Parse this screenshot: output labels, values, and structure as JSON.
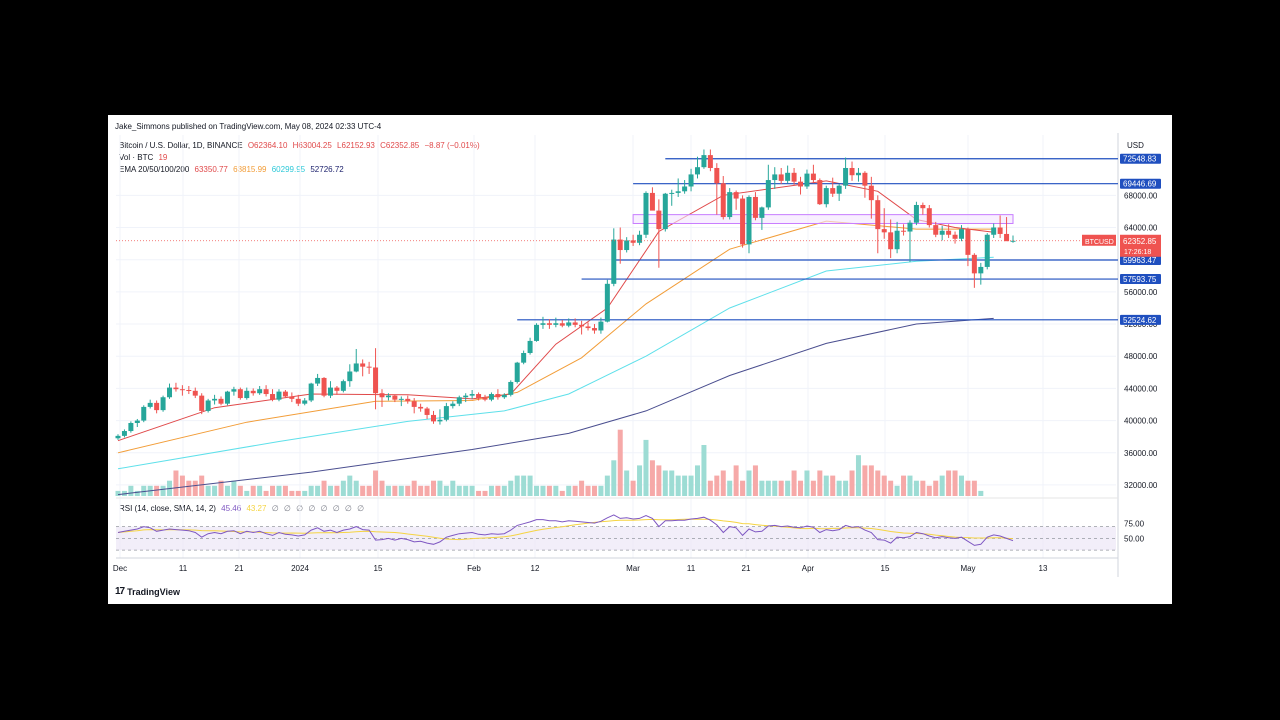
{
  "published_by": "Jake_Simmons published on TradingView.com, May 08, 2024 02:33 UTC-4",
  "legend": {
    "symbol": "Bitcoin / U.S. Dollar, 1D, BINANCE",
    "open": "O62364.10",
    "high": "H63004.25",
    "low": "L62152.93",
    "close": "C62352.85",
    "change": "−8.87 (−0.01%)",
    "vol_label": "Vol · BTC",
    "vol_value": "19",
    "ema_label": "EMA 20/50/100/200",
    "ema20": "63350.77",
    "ema50": "63815.99",
    "ema100": "60299.95",
    "ema200": "52726.72"
  },
  "currency": "USD",
  "brand": "TradingView",
  "brand_logo": "17",
  "rsi_legend": {
    "label": "RSI (14, close, SMA, 14, 2)",
    "rsi": "45.46",
    "sma": "43.27",
    "icons": [
      "∅",
      "∅",
      "∅",
      "∅",
      "∅",
      "∅",
      "∅",
      "∅"
    ]
  },
  "price_tag": {
    "symbol": "BTCUSD",
    "price": "62352.85",
    "countdown": "17:26:18"
  },
  "colors": {
    "up": "#26a69a",
    "down": "#ef5350",
    "ema20": "#e0494a",
    "ema50": "#f29d38",
    "ema100": "#5ee0ea",
    "ema200": "#4a4e8f",
    "hline": "#1f4fbf",
    "zone": "#c77dff"
  },
  "chart_data": {
    "type": "candlestick",
    "y_axis_ticks": [
      "68000.00",
      "64000.00",
      "60000.00",
      "56000.00",
      "52000.00",
      "48000.00",
      "44000.00",
      "40000.00",
      "36000.00",
      "32000.00"
    ],
    "ylim": [
      30500,
      75500
    ],
    "x_axis_ticks": [
      "Dec",
      "11",
      "21",
      "2024",
      "15",
      "Feb",
      "12",
      "Mar",
      "11",
      "21",
      "Apr",
      "15",
      "May",
      "13"
    ],
    "rsi_ticks": [
      "75.00",
      "50.00"
    ],
    "horizontal_levels": [
      "72548.83",
      "69446.69",
      "59963.47",
      "57593.75",
      "52524.62"
    ],
    "resistance_zone": [
      64500,
      65600
    ],
    "candles": [
      [
        37800,
        38300,
        37600,
        38100
      ],
      [
        38100,
        38900,
        37900,
        38700
      ],
      [
        38700,
        39900,
        38500,
        39700
      ],
      [
        39700,
        40200,
        39200,
        40000
      ],
      [
        40000,
        41900,
        39800,
        41700
      ],
      [
        41700,
        42600,
        41500,
        42200
      ],
      [
        42200,
        42500,
        40900,
        41300
      ],
      [
        41300,
        43100,
        41100,
        42900
      ],
      [
        42900,
        44600,
        42700,
        44100
      ],
      [
        44100,
        44700,
        43600,
        43900
      ],
      [
        43900,
        44400,
        43100,
        43800
      ],
      [
        43800,
        44300,
        43300,
        43700
      ],
      [
        43700,
        44100,
        42800,
        43100
      ],
      [
        43100,
        43400,
        40800,
        41200
      ],
      [
        41200,
        42700,
        41000,
        42500
      ],
      [
        42500,
        43200,
        42000,
        42700
      ],
      [
        42700,
        43000,
        41900,
        42100
      ],
      [
        42100,
        43700,
        41900,
        43600
      ],
      [
        43600,
        44200,
        43100,
        43900
      ],
      [
        43900,
        44100,
        42600,
        42800
      ],
      [
        42800,
        44100,
        42600,
        43700
      ],
      [
        43700,
        44000,
        43100,
        43400
      ],
      [
        43400,
        44300,
        43200,
        43900
      ],
      [
        43900,
        44400,
        43000,
        43300
      ],
      [
        43300,
        43900,
        42400,
        42600
      ],
      [
        42600,
        43900,
        42400,
        43600
      ],
      [
        43600,
        43800,
        42800,
        43000
      ],
      [
        43000,
        43500,
        42300,
        42700
      ],
      [
        42700,
        43200,
        41800,
        42100
      ],
      [
        42100,
        42800,
        41900,
        42500
      ],
      [
        42500,
        44700,
        42300,
        44600
      ],
      [
        44600,
        45800,
        44300,
        45300
      ],
      [
        45300,
        45400,
        42900,
        43100
      ],
      [
        43100,
        44900,
        42800,
        44100
      ],
      [
        44100,
        44300,
        43200,
        43700
      ],
      [
        43700,
        45100,
        43500,
        44900
      ],
      [
        44900,
        47000,
        44200,
        46100
      ],
      [
        46100,
        48900,
        46000,
        47100
      ],
      [
        47100,
        47600,
        45500,
        46700
      ],
      [
        46700,
        47300,
        45800,
        46600
      ],
      [
        46600,
        49000,
        41400,
        43400
      ],
      [
        43400,
        43900,
        41700,
        42900
      ],
      [
        42900,
        43400,
        42500,
        43100
      ],
      [
        43100,
        43200,
        42300,
        42600
      ],
      [
        42600,
        43000,
        41800,
        42700
      ],
      [
        42700,
        43100,
        42100,
        42400
      ],
      [
        42400,
        42800,
        40900,
        41700
      ],
      [
        41700,
        42100,
        41100,
        41500
      ],
      [
        41500,
        41700,
        40200,
        40700
      ],
      [
        40700,
        41200,
        39600,
        39900
      ],
      [
        39900,
        41400,
        39500,
        40100
      ],
      [
        40100,
        42200,
        39900,
        41800
      ],
      [
        41800,
        42400,
        41500,
        42100
      ],
      [
        42100,
        43100,
        41800,
        42900
      ],
      [
        42900,
        43400,
        42300,
        43100
      ],
      [
        43100,
        43800,
        42700,
        43300
      ],
      [
        43300,
        43500,
        42500,
        42800
      ],
      [
        42800,
        43200,
        42400,
        42600
      ],
      [
        42600,
        43500,
        42400,
        43300
      ],
      [
        43300,
        43900,
        42600,
        42900
      ],
      [
        42900,
        43400,
        42700,
        43200
      ],
      [
        43200,
        45000,
        43000,
        44800
      ],
      [
        44800,
        47300,
        44600,
        47200
      ],
      [
        47200,
        48700,
        47000,
        48400
      ],
      [
        48400,
        50300,
        48200,
        49900
      ],
      [
        49900,
        52100,
        49800,
        51900
      ],
      [
        51900,
        52900,
        51400,
        52100
      ],
      [
        52100,
        52600,
        51400,
        51900
      ],
      [
        51900,
        52800,
        51600,
        52100
      ],
      [
        52100,
        52500,
        51600,
        51800
      ],
      [
        51800,
        52700,
        51600,
        52200
      ],
      [
        52200,
        52700,
        51600,
        51900
      ],
      [
        51900,
        52400,
        50700,
        51700
      ],
      [
        51700,
        52200,
        51200,
        51500
      ],
      [
        51500,
        52000,
        50800,
        51200
      ],
      [
        51200,
        52800,
        50800,
        52300
      ],
      [
        52300,
        57500,
        52200,
        57000
      ],
      [
        57000,
        63900,
        56700,
        62500
      ],
      [
        62500,
        64000,
        59500,
        61200
      ],
      [
        61200,
        62800,
        60900,
        62400
      ],
      [
        62400,
        63100,
        61700,
        62100
      ],
      [
        62100,
        63600,
        61800,
        63100
      ],
      [
        63100,
        68500,
        62700,
        68300
      ],
      [
        68300,
        69000,
        66300,
        66100
      ],
      [
        66100,
        67500,
        59000,
        63800
      ],
      [
        63800,
        68300,
        63500,
        68200
      ],
      [
        68200,
        68700,
        66700,
        68300
      ],
      [
        68300,
        70100,
        67800,
        68500
      ],
      [
        68500,
        69900,
        68200,
        69100
      ],
      [
        69100,
        71300,
        68500,
        70600
      ],
      [
        70600,
        72800,
        70100,
        71500
      ],
      [
        71500,
        73700,
        71300,
        73000
      ],
      [
        73000,
        73700,
        71000,
        71400
      ],
      [
        71400,
        72000,
        65600,
        69500
      ],
      [
        69500,
        70400,
        65000,
        65300
      ],
      [
        65300,
        68900,
        65000,
        68400
      ],
      [
        68400,
        68600,
        66200,
        67600
      ],
      [
        67600,
        68000,
        61500,
        61900
      ],
      [
        61900,
        68000,
        60800,
        67800
      ],
      [
        67800,
        68400,
        64900,
        65200
      ],
      [
        65200,
        66600,
        63700,
        66500
      ],
      [
        66500,
        71800,
        66200,
        69900
      ],
      [
        69900,
        71500,
        68800,
        70600
      ],
      [
        70600,
        71400,
        69400,
        69800
      ],
      [
        69800,
        71700,
        69500,
        70800
      ],
      [
        70800,
        71400,
        69300,
        69700
      ],
      [
        69700,
        70300,
        68100,
        69100
      ],
      [
        69100,
        71200,
        68800,
        70700
      ],
      [
        70700,
        71800,
        69500,
        69900
      ],
      [
        69900,
        70100,
        66800,
        66900
      ],
      [
        66900,
        69200,
        66500,
        68900
      ],
      [
        68900,
        70200,
        67800,
        68200
      ],
      [
        68200,
        69400,
        67300,
        69200
      ],
      [
        69200,
        72700,
        68800,
        71400
      ],
      [
        71400,
        72200,
        69800,
        70500
      ],
      [
        70500,
        71400,
        69700,
        70800
      ],
      [
        70800,
        71000,
        67700,
        69200
      ],
      [
        69200,
        70300,
        65100,
        67400
      ],
      [
        67400,
        68000,
        60800,
        63800
      ],
      [
        63800,
        66400,
        62600,
        63400
      ],
      [
        63400,
        65000,
        60200,
        61300
      ],
      [
        61300,
        64700,
        60800,
        63600
      ],
      [
        63600,
        64400,
        63000,
        63500
      ],
      [
        63500,
        64900,
        59700,
        64600
      ],
      [
        64600,
        67200,
        64300,
        66800
      ],
      [
        66800,
        67100,
        65600,
        66400
      ],
      [
        66400,
        66800,
        64000,
        64300
      ],
      [
        64300,
        64700,
        62800,
        63100
      ],
      [
        63100,
        64200,
        62400,
        63600
      ],
      [
        63600,
        64400,
        62700,
        63100
      ],
      [
        63100,
        63500,
        62000,
        62600
      ],
      [
        62600,
        64300,
        62300,
        63800
      ],
      [
        63800,
        64000,
        59200,
        60600
      ],
      [
        60600,
        60800,
        56500,
        58300
      ],
      [
        58300,
        59600,
        56900,
        59100
      ],
      [
        59100,
        63300,
        58800,
        63100
      ],
      [
        63100,
        64500,
        62700,
        64000
      ],
      [
        64000,
        65500,
        62700,
        63200
      ],
      [
        63200,
        65300,
        62500,
        62300
      ],
      [
        62300,
        63000,
        62100,
        62350
      ]
    ],
    "volumes": [
      1,
      1,
      2,
      1,
      2,
      2,
      2,
      2,
      3,
      5,
      4,
      3,
      3,
      4,
      2,
      2,
      3,
      2,
      3,
      2,
      1,
      2,
      2,
      1,
      2,
      2,
      2,
      1,
      1,
      1,
      2,
      2,
      3,
      2,
      2,
      3,
      4,
      3,
      2,
      2,
      5,
      3,
      2,
      2,
      2,
      2,
      3,
      2,
      2,
      3,
      3,
      2,
      3,
      2,
      2,
      2,
      1,
      1,
      2,
      2,
      2,
      3,
      4,
      4,
      4,
      2,
      2,
      2,
      2,
      1,
      2,
      2,
      3,
      2,
      2,
      2,
      4,
      7,
      13,
      5,
      3,
      6,
      11,
      7,
      6,
      5,
      5,
      4,
      4,
      4,
      6,
      10,
      3,
      4,
      5,
      3,
      6,
      3,
      5,
      6,
      3,
      3,
      3,
      3,
      3,
      5,
      3,
      5,
      3,
      5,
      4,
      4,
      3,
      3,
      5,
      8,
      6,
      6,
      5,
      4,
      3,
      2,
      4,
      4,
      3,
      3,
      2,
      3,
      4,
      5,
      5,
      4,
      3,
      3,
      1
    ],
    "ema20_path": [
      [
        0,
        37500
      ],
      [
        15,
        41600
      ],
      [
        30,
        43300
      ],
      [
        45,
        43200
      ],
      [
        55,
        42700
      ],
      [
        61,
        43300
      ],
      [
        68,
        49500
      ],
      [
        76,
        54000
      ],
      [
        84,
        63500
      ],
      [
        94,
        68000
      ],
      [
        110,
        69800
      ],
      [
        118,
        68500
      ],
      [
        124,
        65000
      ],
      [
        130,
        64000
      ],
      [
        136,
        63400
      ]
    ],
    "ema50_path": [
      [
        0,
        36000
      ],
      [
        20,
        39800
      ],
      [
        40,
        42400
      ],
      [
        55,
        42500
      ],
      [
        62,
        43500
      ],
      [
        72,
        47800
      ],
      [
        82,
        54500
      ],
      [
        95,
        61300
      ],
      [
        110,
        64800
      ],
      [
        124,
        63800
      ],
      [
        136,
        63800
      ]
    ],
    "ema100_path": [
      [
        0,
        34000
      ],
      [
        25,
        37400
      ],
      [
        45,
        39900
      ],
      [
        60,
        41200
      ],
      [
        70,
        43300
      ],
      [
        82,
        48000
      ],
      [
        95,
        54000
      ],
      [
        110,
        58600
      ],
      [
        124,
        59800
      ],
      [
        136,
        60300
      ]
    ],
    "ema200_path": [
      [
        0,
        30800
      ],
      [
        30,
        33600
      ],
      [
        55,
        36400
      ],
      [
        70,
        38400
      ],
      [
        82,
        41200
      ],
      [
        95,
        45600
      ],
      [
        110,
        49600
      ],
      [
        124,
        52000
      ],
      [
        136,
        52700
      ]
    ],
    "rsi_values": [
      60,
      62,
      64,
      66,
      70,
      68,
      62,
      64,
      66,
      65,
      64,
      63,
      60,
      52,
      58,
      60,
      58,
      62,
      63,
      58,
      62,
      60,
      62,
      58,
      55,
      60,
      57,
      56,
      54,
      56,
      64,
      68,
      62,
      64,
      60,
      64,
      66,
      70,
      65,
      64,
      47,
      48,
      50,
      47,
      50,
      48,
      44,
      45,
      42,
      40,
      44,
      52,
      55,
      58,
      59,
      60,
      57,
      56,
      58,
      57,
      58,
      64,
      72,
      75,
      78,
      82,
      82,
      80,
      80,
      78,
      80,
      79,
      78,
      77,
      76,
      79,
      85,
      90,
      84,
      85,
      83,
      84,
      89,
      84,
      70,
      80,
      80,
      81,
      81,
      83,
      84,
      86,
      81,
      73,
      60,
      70,
      68,
      55,
      66,
      61,
      62,
      71,
      72,
      70,
      71,
      69,
      68,
      71,
      69,
      60,
      65,
      63,
      65,
      72,
      69,
      70,
      64,
      60,
      48,
      47,
      42,
      52,
      51,
      53,
      60,
      58,
      54,
      51,
      53,
      51,
      50,
      52,
      45,
      38,
      40,
      52,
      56,
      54,
      50,
      46
    ]
  }
}
